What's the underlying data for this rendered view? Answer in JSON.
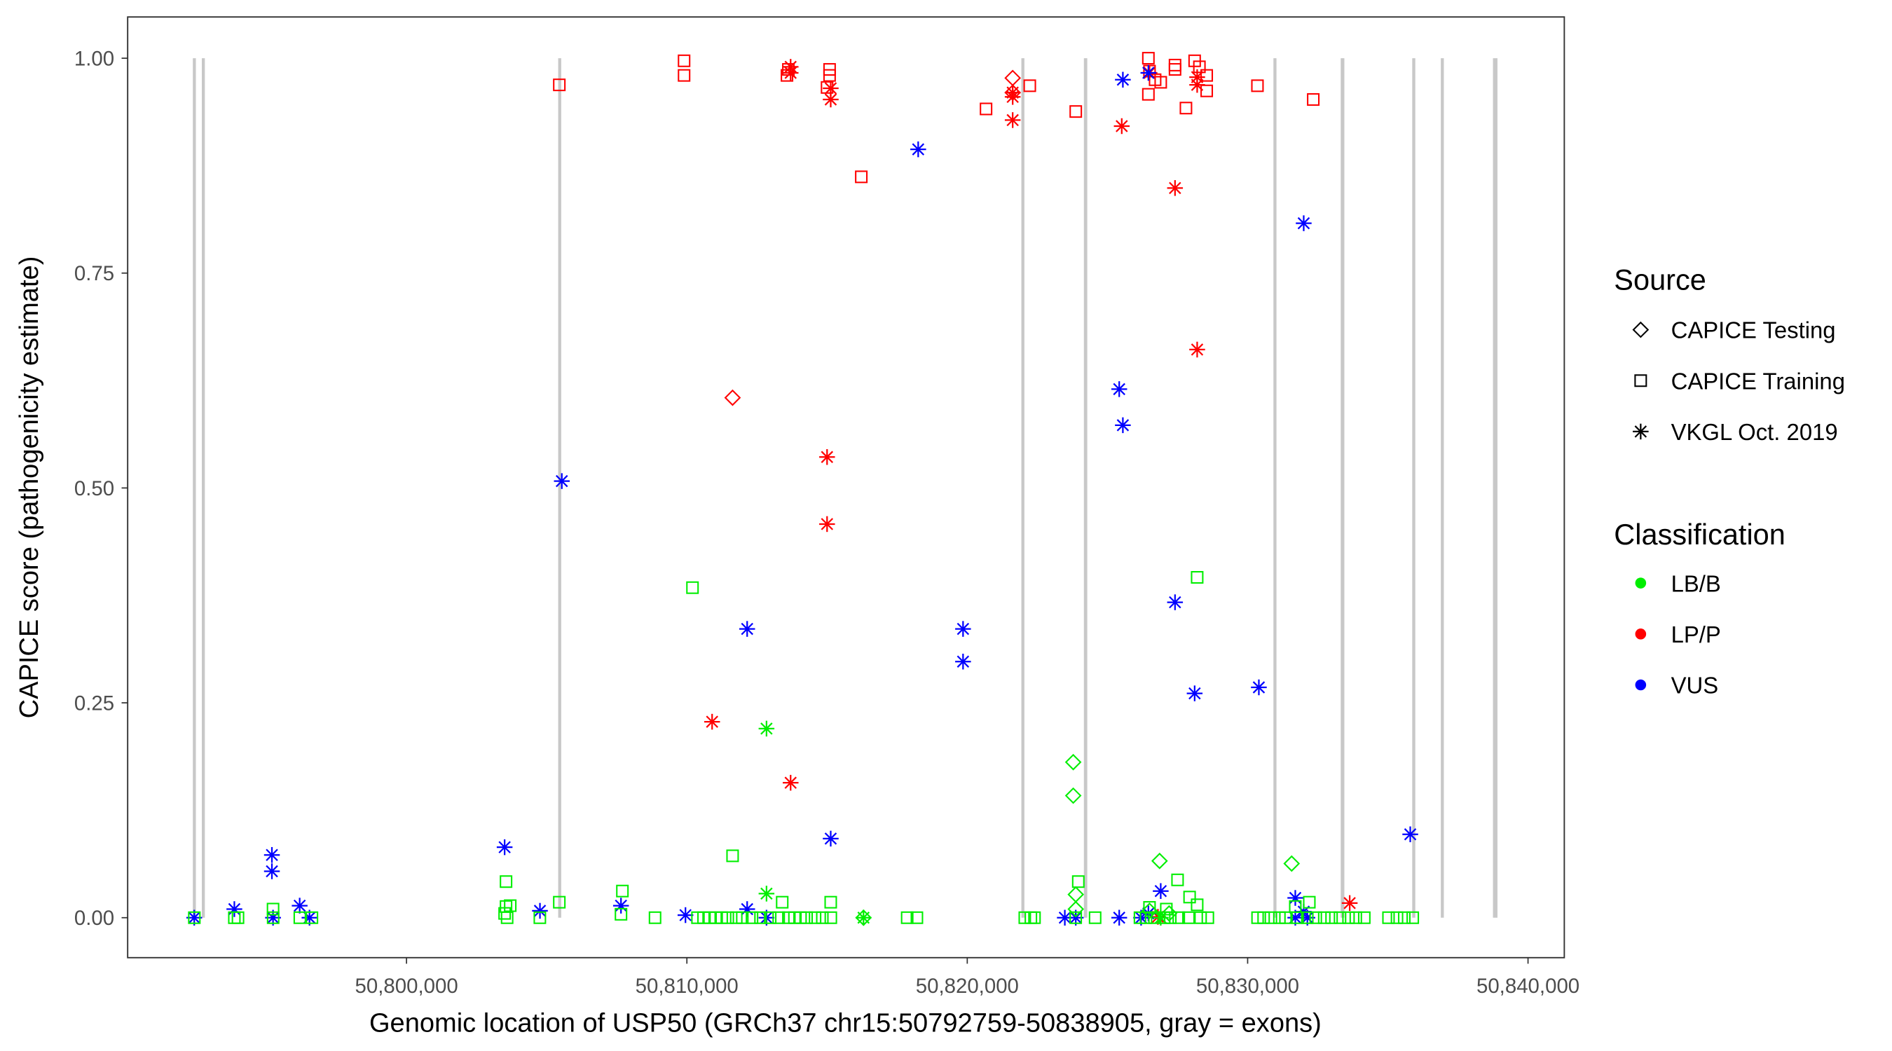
{
  "chart_data": {
    "type": "scatter",
    "xlabel": "Genomic location of USP50 (GRCh37 chr15:50792759-50838905, gray = exons)",
    "ylabel": "CAPICE score (pathogenicity estimate)",
    "xlim": [
      50790055,
      50841294
    ],
    "ylim": [
      -0.0465,
      1.048
    ],
    "x_ticks": [
      50800000,
      50810000,
      50820000,
      50830000,
      50840000
    ],
    "x_tick_labels": [
      "50,800,000",
      "50,810,000",
      "50,820,000",
      "50,830,000",
      "50,840,000"
    ],
    "y_ticks": [
      0,
      0.25,
      0.5,
      0.75,
      1.0
    ],
    "y_tick_labels": [
      "0.00",
      "0.25",
      "0.50",
      "0.75",
      "1.00"
    ],
    "grid": false,
    "legend_placement": "right",
    "legend": {
      "source_title": "Source",
      "sources": [
        {
          "key": "T",
          "label": "CAPICE Testing",
          "shape": "diamond"
        },
        {
          "key": "R",
          "label": "CAPICE Training",
          "shape": "square"
        },
        {
          "key": "V",
          "label": "VKGL Oct. 2019",
          "shape": "asterisk"
        }
      ],
      "class_title": "Classification",
      "classes": [
        {
          "label": "LB/B",
          "color": "#00ee00"
        },
        {
          "label": "LP/P",
          "color": "#ff0000"
        },
        {
          "label": "VUS",
          "color": "#0000ff"
        }
      ]
    },
    "exons": [
      [
        50792380,
        50792480
      ],
      [
        50792700,
        50792790
      ],
      [
        50805410,
        50805490
      ],
      [
        50821930,
        50822010
      ],
      [
        50824160,
        50824280
      ],
      [
        50830920,
        50831000
      ],
      [
        50833320,
        50833450
      ],
      [
        50835870,
        50835980
      ],
      [
        50836890,
        50836970
      ],
      [
        50838750,
        50838910
      ]
    ],
    "series": [
      {
        "source": "R",
        "class": "LP/P",
        "points": [
          [
            50805450,
            0.969
          ],
          [
            50809900,
            0.997
          ],
          [
            50809900,
            0.98
          ],
          [
            50813570,
            0.98
          ],
          [
            50813620,
            0.987
          ],
          [
            50815090,
            0.987
          ],
          [
            50815090,
            0.98
          ],
          [
            50815000,
            0.966
          ],
          [
            50816220,
            0.862
          ],
          [
            50820670,
            0.941
          ],
          [
            50822230,
            0.968
          ],
          [
            50823870,
            0.938
          ],
          [
            50826460,
            1.0
          ],
          [
            50826460,
            0.958
          ],
          [
            50826500,
            0.985
          ],
          [
            50826900,
            0.972
          ],
          [
            50827410,
            0.987
          ],
          [
            50827800,
            0.942
          ],
          [
            50828110,
            0.997
          ],
          [
            50828540,
            0.98
          ],
          [
            50828540,
            0.962
          ],
          [
            50830350,
            0.968
          ],
          [
            50832340,
            0.952
          ],
          [
            50828280,
            0.99
          ],
          [
            50827410,
            0.992
          ],
          [
            50826700,
            0.975
          ]
        ]
      },
      {
        "source": "T",
        "class": "LP/P",
        "points": [
          [
            50821620,
            0.977
          ],
          [
            50811630,
            0.605
          ],
          [
            50821620,
            0.96
          ]
        ]
      },
      {
        "source": "V",
        "class": "LP/P",
        "points": [
          [
            50813700,
            0.99
          ],
          [
            50813700,
            0.983
          ],
          [
            50815130,
            0.965
          ],
          [
            50815130,
            0.952
          ],
          [
            50821620,
            0.955
          ],
          [
            50821620,
            0.928
          ],
          [
            50825510,
            0.921
          ],
          [
            50827410,
            0.849
          ],
          [
            50828200,
            0.661
          ],
          [
            50815000,
            0.536
          ],
          [
            50815000,
            0.458
          ],
          [
            50810900,
            0.228
          ],
          [
            50813700,
            0.157
          ],
          [
            50833640,
            0.017
          ],
          [
            50826800,
            0.001
          ],
          [
            50828200,
            0.969
          ],
          [
            50826500,
            0.983
          ],
          [
            50821620,
            0.96
          ],
          [
            50828200,
            0.978
          ]
        ]
      },
      {
        "source": "V",
        "class": "VUS",
        "points": [
          [
            50818250,
            0.894
          ],
          [
            50832000,
            0.808
          ],
          [
            50825550,
            0.975
          ],
          [
            50826460,
            0.983
          ],
          [
            50825420,
            0.615
          ],
          [
            50825550,
            0.573
          ],
          [
            50805540,
            0.508
          ],
          [
            50812150,
            0.336
          ],
          [
            50819850,
            0.336
          ],
          [
            50819850,
            0.298
          ],
          [
            50827410,
            0.367
          ],
          [
            50828110,
            0.261
          ],
          [
            50830400,
            0.268
          ],
          [
            50815130,
            0.092
          ],
          [
            50835800,
            0.097
          ],
          [
            50795200,
            0.073
          ],
          [
            50795200,
            0.054
          ],
          [
            50803500,
            0.082
          ],
          [
            50793860,
            0.01
          ],
          [
            50792430,
            0.0
          ],
          [
            50796190,
            0.014
          ],
          [
            50796540,
            0.0
          ],
          [
            50804760,
            0.008
          ],
          [
            50807650,
            0.014
          ],
          [
            50809950,
            0.003
          ],
          [
            50812150,
            0.01
          ],
          [
            50812840,
            0.0
          ],
          [
            50823480,
            0.0
          ],
          [
            50823870,
            0.0
          ],
          [
            50825420,
            0.0
          ],
          [
            50826460,
            0.005
          ],
          [
            50826900,
            0.031
          ],
          [
            50831700,
            0.023
          ],
          [
            50832000,
            0.007
          ],
          [
            50831700,
            0.0
          ],
          [
            50832130,
            0.0
          ],
          [
            50795240,
            0.0
          ],
          [
            50826200,
            0.0
          ]
        ]
      },
      {
        "source": "V",
        "class": "LB/B",
        "points": [
          [
            50812840,
            0.22
          ],
          [
            50812840,
            0.028
          ],
          [
            50816300,
            0.0
          ],
          [
            50826900,
            0.0
          ]
        ]
      },
      {
        "source": "T",
        "class": "LB/B",
        "points": [
          [
            50823780,
            0.181
          ],
          [
            50823780,
            0.142
          ],
          [
            50826860,
            0.066
          ],
          [
            50831570,
            0.063
          ],
          [
            50823870,
            0.027
          ],
          [
            50823870,
            0.01
          ],
          [
            50816300,
            0.0
          ],
          [
            50826500,
            0.008
          ],
          [
            50827200,
            0.005
          ]
        ]
      },
      {
        "source": "R",
        "class": "LB/B",
        "points": [
          [
            50810200,
            0.384
          ],
          [
            50828200,
            0.396
          ],
          [
            50811630,
            0.072
          ],
          [
            50803550,
            0.042
          ],
          [
            50823960,
            0.042
          ],
          [
            50827500,
            0.044
          ],
          [
            50807700,
            0.031
          ],
          [
            50805450,
            0.018
          ],
          [
            50815130,
            0.018
          ],
          [
            50813400,
            0.018
          ],
          [
            50795240,
            0.01
          ],
          [
            50803550,
            0.013
          ],
          [
            50803700,
            0.014
          ],
          [
            50827930,
            0.024
          ],
          [
            50828200,
            0.015
          ],
          [
            50832200,
            0.018
          ],
          [
            50831700,
            0.013
          ],
          [
            50803500,
            0.005
          ],
          [
            50826500,
            0.012
          ],
          [
            50827100,
            0.01
          ],
          [
            50807650,
            0.004
          ],
          [
            50792433,
            0
          ],
          [
            50793860,
            0
          ],
          [
            50793990,
            0
          ],
          [
            50795244,
            0
          ],
          [
            50796195,
            0
          ],
          [
            50796627,
            0
          ],
          [
            50803589,
            0
          ],
          [
            50804756,
            0
          ],
          [
            50808864,
            0
          ],
          [
            50810378,
            0
          ],
          [
            50810594,
            0
          ],
          [
            50810810,
            0
          ],
          [
            50811026,
            0
          ],
          [
            50811242,
            0
          ],
          [
            50811459,
            0
          ],
          [
            50811761,
            0
          ],
          [
            50811977,
            0
          ],
          [
            50812323,
            0
          ],
          [
            50812626,
            0
          ],
          [
            50812972,
            0
          ],
          [
            50813275,
            0
          ],
          [
            50813621,
            0
          ],
          [
            50813837,
            0
          ],
          [
            50814053,
            0
          ],
          [
            50814269,
            0
          ],
          [
            50814572,
            0
          ],
          [
            50814831,
            0
          ],
          [
            50815134,
            0
          ],
          [
            50817858,
            0
          ],
          [
            50818204,
            0
          ],
          [
            50822052,
            0
          ],
          [
            50822269,
            0
          ],
          [
            50822398,
            0
          ],
          [
            50823868,
            0
          ],
          [
            50824560,
            0
          ],
          [
            50826160,
            0
          ],
          [
            50826376,
            0
          ],
          [
            50826679,
            0
          ],
          [
            50827025,
            0
          ],
          [
            50827241,
            0
          ],
          [
            50827544,
            0
          ],
          [
            50827890,
            0
          ],
          [
            50828322,
            0
          ],
          [
            50828581,
            0
          ],
          [
            50830354,
            0
          ],
          [
            50830570,
            0
          ],
          [
            50830829,
            0
          ],
          [
            50831133,
            0
          ],
          [
            50831349,
            0
          ],
          [
            50831781,
            0
          ],
          [
            50832127,
            0
          ],
          [
            50832430,
            0
          ],
          [
            50832733,
            0
          ],
          [
            50832993,
            0
          ],
          [
            50833295,
            0
          ],
          [
            50833598,
            0
          ],
          [
            50833857,
            0
          ],
          [
            50834160,
            0
          ],
          [
            50835024,
            0
          ],
          [
            50835327,
            0
          ],
          [
            50835586,
            0
          ],
          [
            50835889,
            0
          ]
        ]
      }
    ]
  }
}
